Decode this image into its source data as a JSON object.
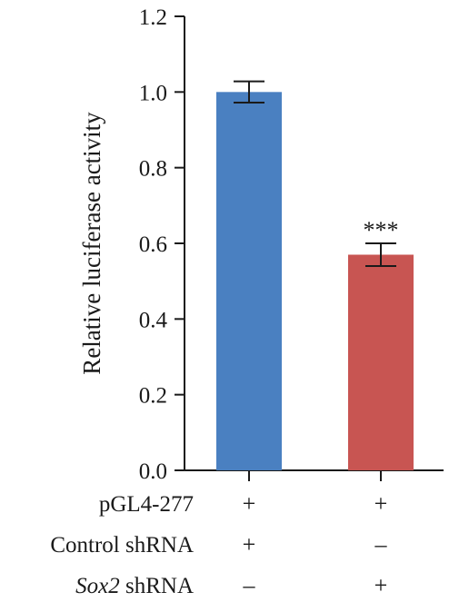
{
  "chart_data": {
    "type": "bar",
    "ylabel": "Relative luciferase activity",
    "ylim": [
      0,
      1.2
    ],
    "yticks": [
      "0.0",
      "0.2",
      "0.4",
      "0.6",
      "0.8",
      "1.0",
      "1.2"
    ],
    "grid": false,
    "bars": [
      {
        "value": 1.0,
        "error": 0.028,
        "color": "#4a80c1",
        "significance": ""
      },
      {
        "value": 0.57,
        "error": 0.03,
        "color": "#c85552",
        "significance": "***"
      }
    ],
    "condition_rows": [
      {
        "label": "pGL4-277",
        "label_italic": "",
        "label_rest": "pGL4-277",
        "marks": [
          "+",
          "+"
        ]
      },
      {
        "label": "Control shRNA",
        "label_italic": "",
        "label_rest": "Control shRNA",
        "marks": [
          "+",
          "–"
        ]
      },
      {
        "label": "Sox2 shRNA",
        "label_italic": "Sox2",
        "label_rest": " shRNA",
        "marks": [
          "–",
          "+"
        ]
      }
    ]
  }
}
